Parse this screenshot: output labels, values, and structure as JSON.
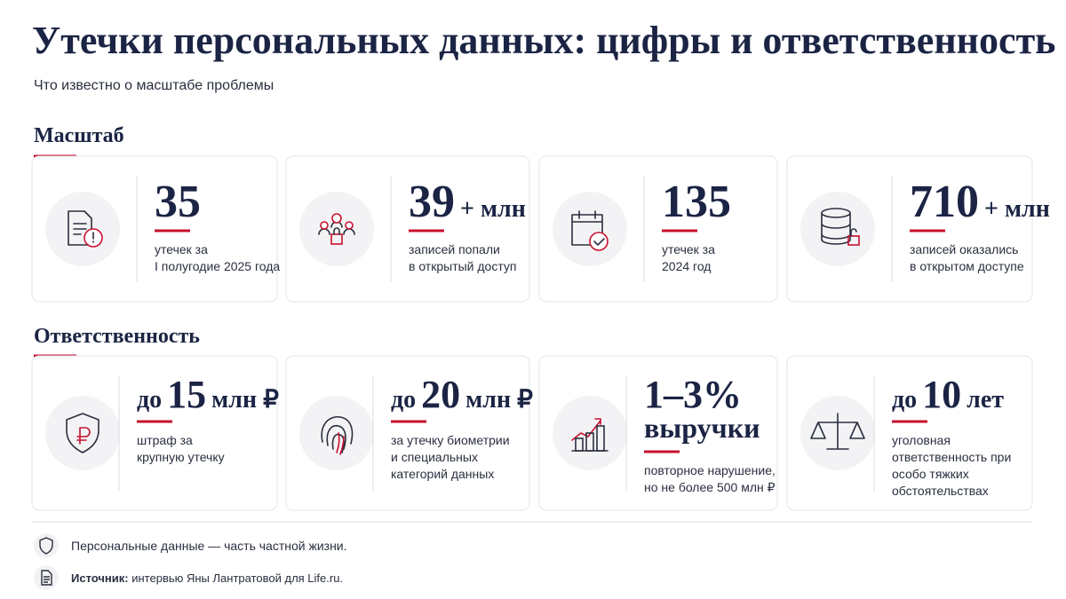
{
  "header": {
    "title": "Утечки персональных данных: цифры и ответственность",
    "subtitle": "Что известно о масштабе проблемы"
  },
  "sections": [
    {
      "title": "Масштаб",
      "cards": [
        {
          "number": "35",
          "description": [
            "утечек за",
            "I полугодие 2025 года"
          ]
        },
        {
          "number": "39",
          "suffix": "+ млн",
          "description": [
            "записей попали",
            "в открытый доступ"
          ]
        },
        {
          "number": "135",
          "description": [
            "утечек за",
            "2024 год"
          ]
        },
        {
          "number": "710",
          "suffix": "+ млн",
          "description": [
            "записей оказались",
            "в открытом доступе"
          ]
        }
      ]
    },
    {
      "title": "Ответственность",
      "cards": [
        {
          "prefix": "до",
          "number": "15",
          "suffix": "млн ₽",
          "description": [
            "штраф за",
            "крупную утечку"
          ]
        },
        {
          "prefix": "до",
          "number": "20",
          "suffix": "млн ₽",
          "description": [
            "за утечку биометрии",
            "и специальных",
            "категорий данных"
          ]
        },
        {
          "number": "1–3%",
          "second_line": "выручки",
          "description": [
            "повторное нарушение,",
            "но не более 500 млн ₽"
          ]
        },
        {
          "prefix": "до",
          "number": "10",
          "suffix": "лет",
          "description": [
            "уголовная",
            "ответственность при",
            "особо тяжких",
            "обстоятельствах"
          ]
        }
      ]
    }
  ],
  "footer": {
    "note": "Персональные данные — часть частной жизни.",
    "source_label": "Источник:",
    "source_text": " интервью Яны Лантратовой для Life.ru."
  }
}
